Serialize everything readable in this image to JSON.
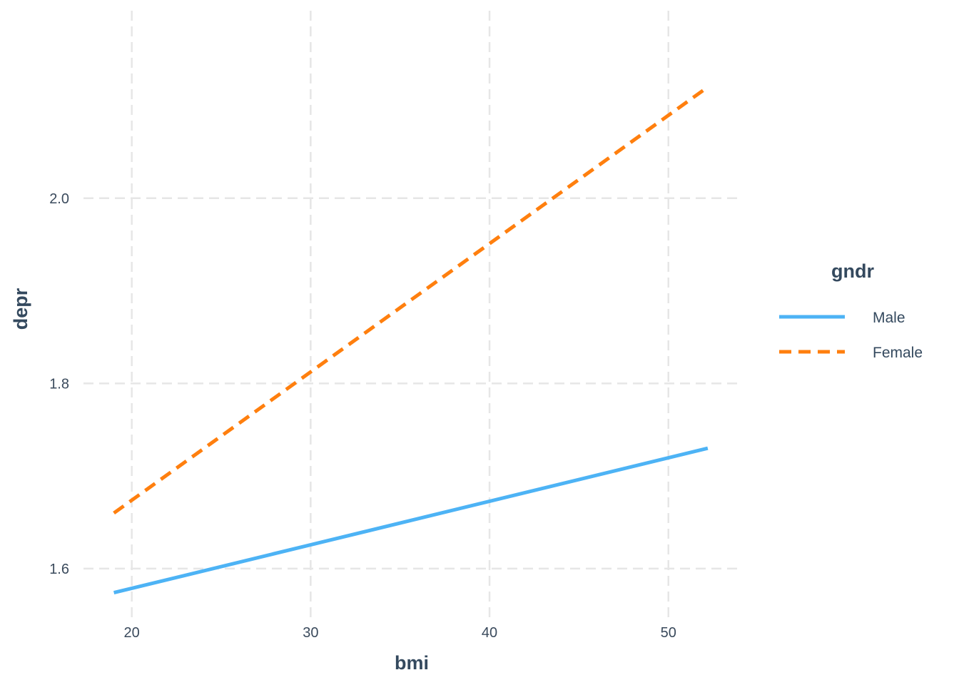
{
  "chart_data": {
    "type": "line",
    "xlabel": "bmi",
    "ylabel": "depr",
    "xlim": [
      17.3,
      54
    ],
    "ylim": [
      1.5475,
      2.2025
    ],
    "x_ticks": [
      20,
      30,
      40,
      50
    ],
    "y_ticks": [
      1.6,
      1.8,
      2.0
    ],
    "x_tick_labels": [
      "20",
      "30",
      "40",
      "50"
    ],
    "y_tick_labels": [
      "1.6",
      "1.8",
      "2.0"
    ],
    "grid": true,
    "legend": {
      "title": "gndr",
      "placement": "right"
    },
    "series": [
      {
        "name": "Male",
        "color": "#4db3f5",
        "dash": "solid",
        "x": [
          19,
          52.2
        ],
        "y": [
          1.574,
          1.73
        ]
      },
      {
        "name": "Female",
        "color": "#ff7f0e",
        "dash": "dashed",
        "x": [
          19,
          52.2
        ],
        "y": [
          1.66,
          2.12
        ]
      }
    ]
  }
}
